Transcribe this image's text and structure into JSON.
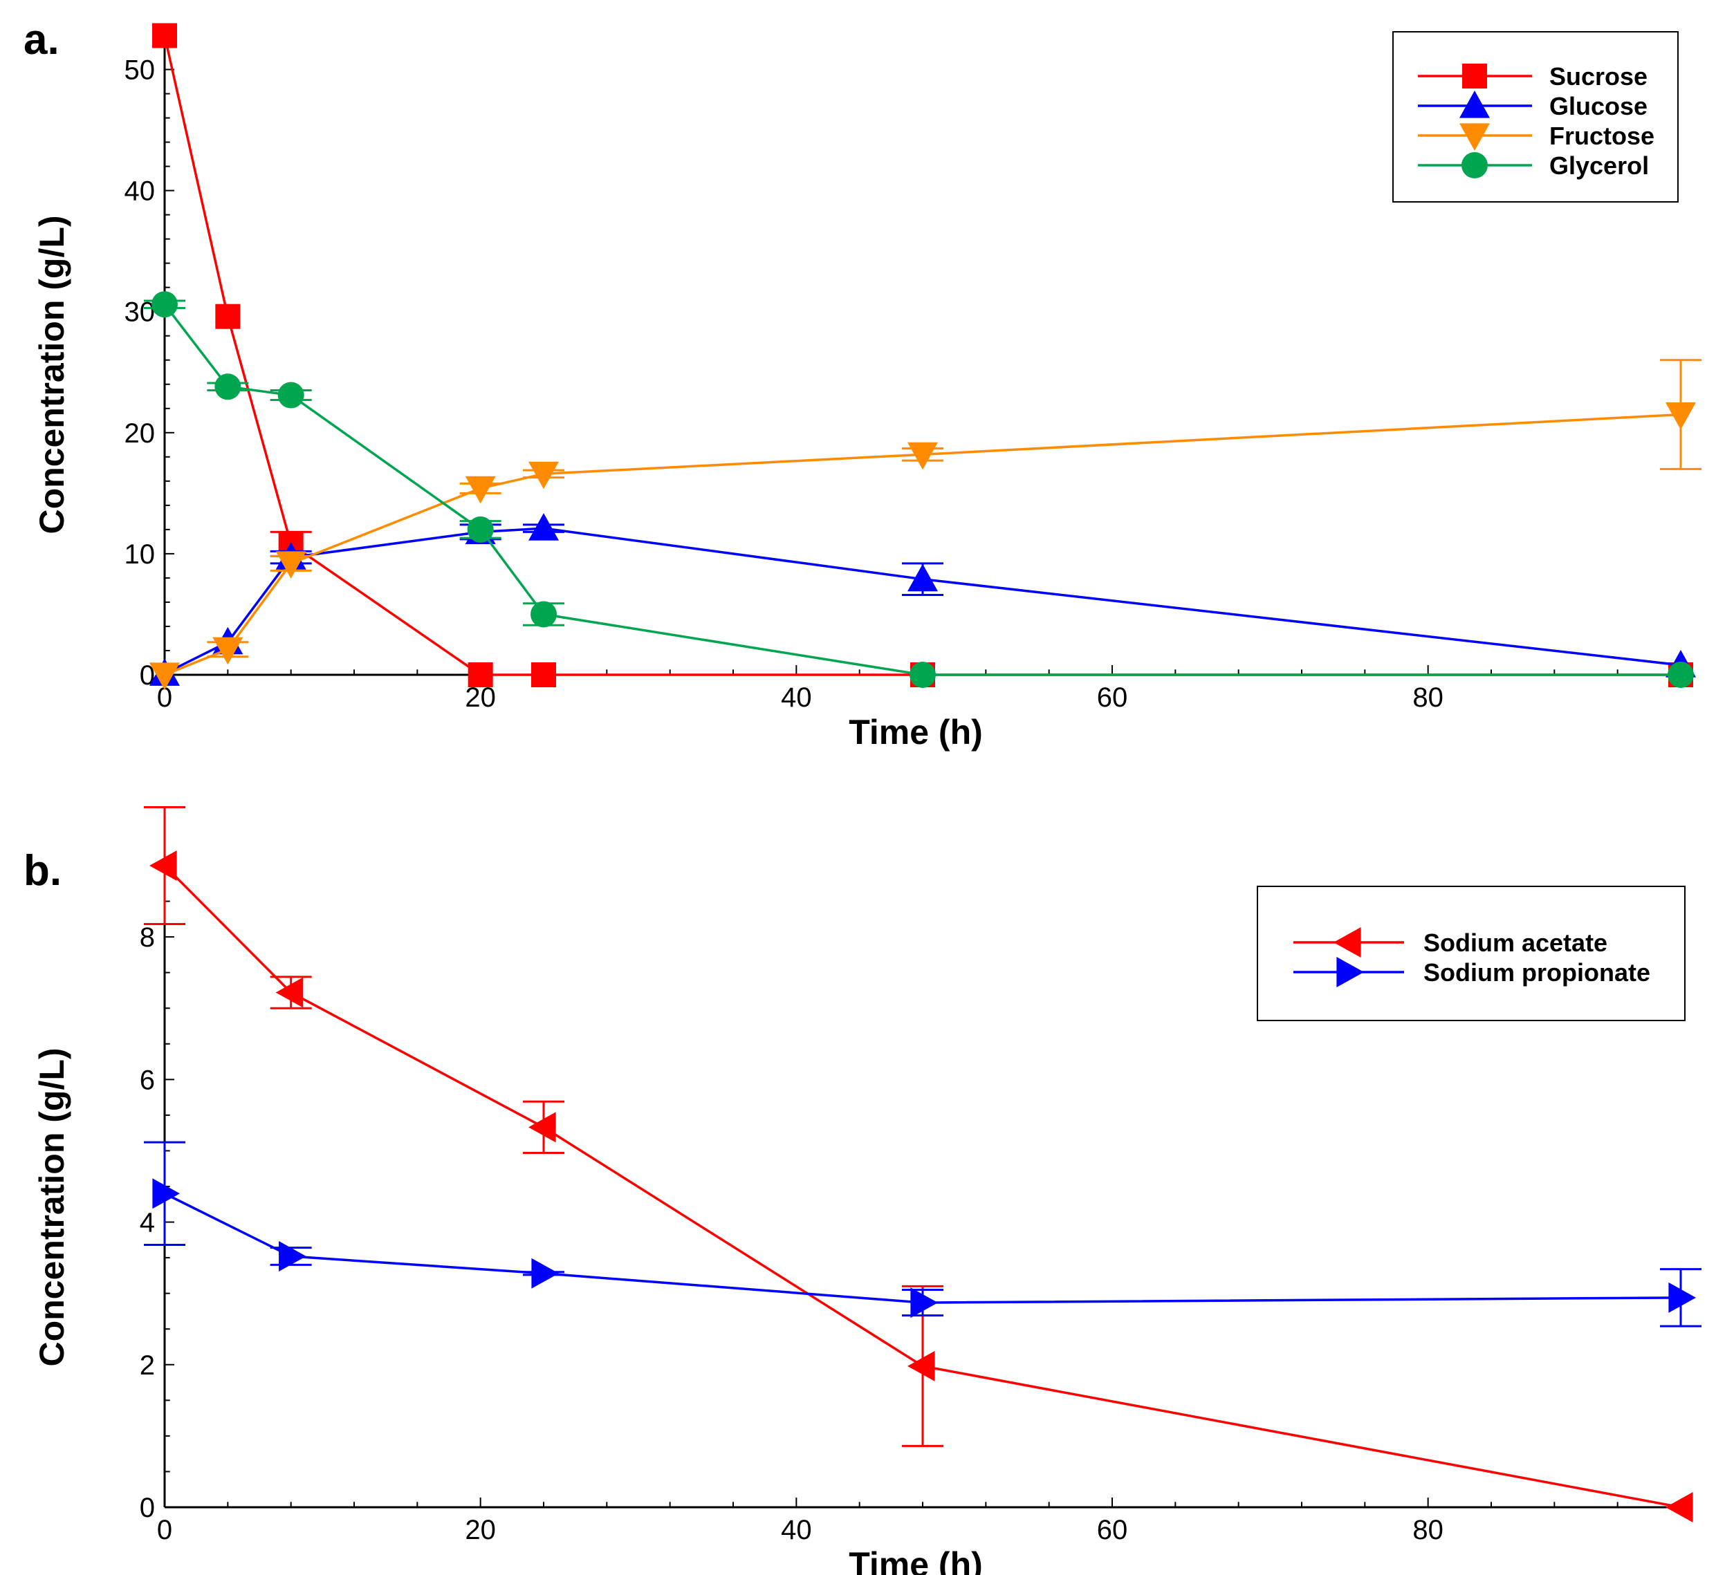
{
  "chart_data": [
    {
      "panel_label": "a.",
      "type": "line",
      "xlabel": "Time (h)",
      "ylabel": "Concentration (g/L)",
      "xlim": [
        0,
        96
      ],
      "ylim": [
        0,
        53
      ],
      "xticks": [
        0,
        20,
        40,
        60,
        80
      ],
      "yticks": [
        0,
        10,
        20,
        30,
        40,
        50
      ],
      "xtick_labels": [
        "0",
        "20",
        "40",
        "60",
        "80"
      ],
      "ytick_labels": [
        "0",
        "10",
        "20",
        "30",
        "40",
        "50"
      ],
      "grid": false,
      "legend_position": "top-right",
      "series": [
        {
          "name": "Sucrose",
          "color": "#ff0000",
          "marker": "square",
          "x": [
            0,
            4,
            8,
            20,
            24,
            48,
            96
          ],
          "y": [
            52.8,
            29.6,
            10.8,
            0.0,
            0.0,
            0.0,
            0.0
          ],
          "err": [
            0,
            0,
            1.0,
            0,
            0,
            0,
            0
          ]
        },
        {
          "name": "Glucose",
          "color": "#0000ff",
          "marker": "triangle-up",
          "x": [
            0,
            4,
            8,
            20,
            24,
            48,
            96
          ],
          "y": [
            0.1,
            2.7,
            9.7,
            11.8,
            12.1,
            7.9,
            0.8
          ],
          "err": [
            0,
            0,
            0.5,
            0.6,
            0.3,
            1.3,
            0
          ]
        },
        {
          "name": "Fructose",
          "color": "#ff8c00",
          "marker": "triangle-down",
          "x": [
            0,
            4,
            8,
            20,
            24,
            48,
            96
          ],
          "y": [
            0.0,
            2.1,
            9.2,
            15.4,
            16.6,
            18.2,
            21.5
          ],
          "err": [
            0,
            0.6,
            0.6,
            0.4,
            0.3,
            0.5,
            4.5
          ]
        },
        {
          "name": "Glycerol",
          "color": "#00a550",
          "marker": "circle",
          "x": [
            0,
            4,
            8,
            20,
            24,
            48,
            96
          ],
          "y": [
            30.6,
            23.8,
            23.1,
            12.0,
            5.0,
            0.0,
            0.0
          ],
          "err": [
            0.3,
            0.3,
            0.4,
            0.7,
            0.9,
            0,
            0
          ]
        }
      ]
    },
    {
      "panel_label": "b.",
      "type": "line",
      "xlabel": "Time (h)",
      "ylabel": "Concentration (g/L)",
      "xlim": [
        0,
        96
      ],
      "ylim": [
        0,
        9
      ],
      "xticks": [
        0,
        20,
        40,
        60,
        80
      ],
      "yticks": [
        0,
        2,
        4,
        6,
        8
      ],
      "xtick_labels": [
        "0",
        "20",
        "40",
        "60",
        "80"
      ],
      "ytick_labels": [
        "0",
        "2",
        "4",
        "6",
        "8"
      ],
      "grid": false,
      "legend_position": "top-right",
      "series": [
        {
          "name": "Sodium acetate",
          "color": "#ff0000",
          "marker": "triangle-left",
          "x": [
            0,
            8,
            24,
            48,
            96
          ],
          "y": [
            9.0,
            7.22,
            5.33,
            1.98,
            0.0
          ],
          "err": [
            0.82,
            0.22,
            0.36,
            1.12,
            0
          ]
        },
        {
          "name": "Sodium propionate",
          "color": "#0000ff",
          "marker": "triangle-right",
          "x": [
            0,
            8,
            24,
            48,
            96
          ],
          "y": [
            4.4,
            3.52,
            3.28,
            2.87,
            2.94
          ],
          "err": [
            0.72,
            0.12,
            0.02,
            0.18,
            0.4
          ]
        }
      ]
    }
  ]
}
